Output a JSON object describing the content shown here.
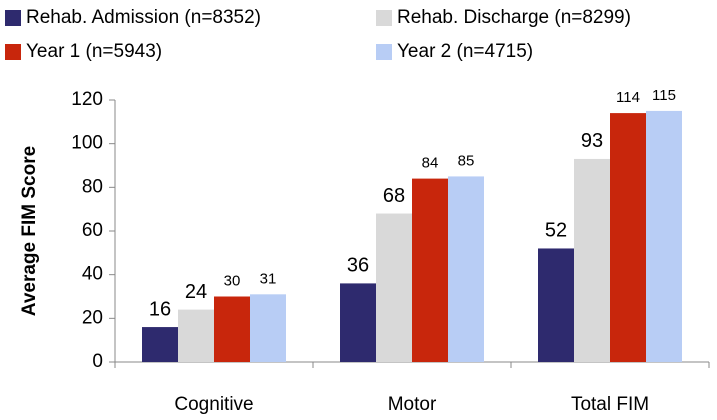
{
  "chart_data": {
    "type": "bar",
    "categories": [
      "Cognitive",
      "Motor",
      "Total FIM"
    ],
    "series": [
      {
        "name": "Rehab. Admission (n=8352)",
        "color": "#2e2a6e",
        "values": [
          16,
          36,
          52
        ]
      },
      {
        "name": "Rehab. Discharge (n=8299)",
        "color": "#d9d9d9",
        "values": [
          24,
          68,
          93
        ]
      },
      {
        "name": "Year 1 (n=5943)",
        "color": "#c8260c",
        "values": [
          30,
          84,
          114
        ]
      },
      {
        "name": "Year 2 (n=4715)",
        "color": "#b8cdf5",
        "values": [
          31,
          85,
          115
        ]
      }
    ],
    "y_label": "Average FIM Score",
    "ylim": [
      0,
      120
    ],
    "yticks": [
      0,
      20,
      40,
      60,
      80,
      100,
      120
    ],
    "legend": "top"
  }
}
